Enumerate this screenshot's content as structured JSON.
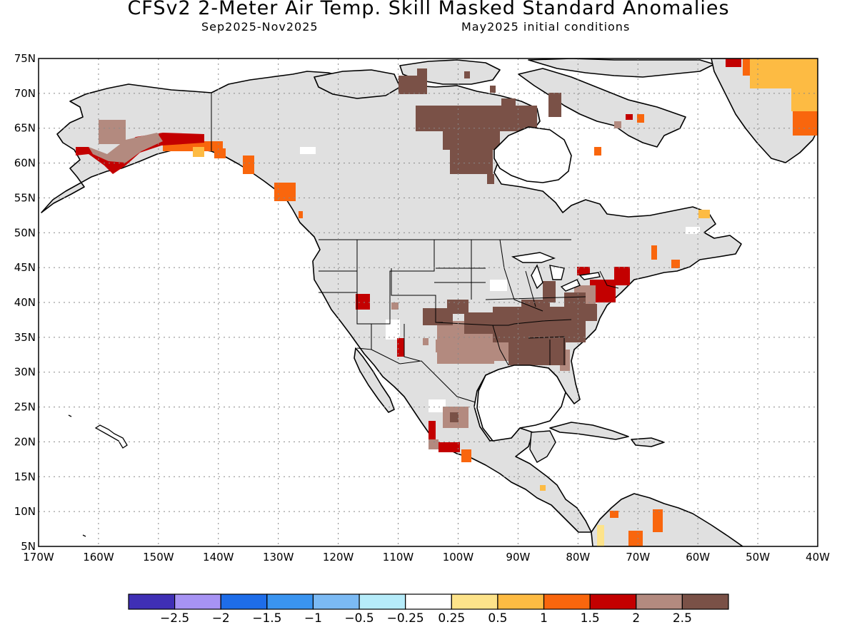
{
  "title": "CFSv2 2-Meter Air Temp. Skill Masked Standard Anomalies",
  "subtitle_left": "Sep2025-Nov2025",
  "subtitle_right": "May2025 initial conditions",
  "map": {
    "lon_range": [
      -170,
      -40
    ],
    "lat_range": [
      5,
      75
    ],
    "lat_ticks": [
      "75N",
      "70N",
      "65N",
      "60N",
      "55N",
      "50N",
      "45N",
      "40N",
      "35N",
      "30N",
      "25N",
      "20N",
      "15N",
      "10N",
      "5N"
    ],
    "lon_ticks": [
      "170W",
      "160W",
      "150W",
      "140W",
      "130W",
      "120W",
      "110W",
      "100W",
      "90W",
      "80W",
      "70W",
      "60W",
      "50W",
      "40W"
    ],
    "grid": "dotted",
    "land_color": "#e0e0e0",
    "ocean_color": "#ffffff"
  },
  "colorbar": {
    "colors": [
      "#3f2fb5",
      "#a793f4",
      "#1e6de9",
      "#3a94f0",
      "#7bbaf4",
      "#b6ecfa",
      "#ffffff",
      "#fde38a",
      "#fdbb43",
      "#f9660d",
      "#c30000",
      "#b38a7f",
      "#7a5147"
    ],
    "labels": [
      "-2.5",
      "-2",
      "-1.5",
      "-1",
      "-0.5",
      "-0.25",
      "0.25",
      "0.5",
      "1",
      "1.5",
      "2",
      "2.5"
    ]
  }
}
